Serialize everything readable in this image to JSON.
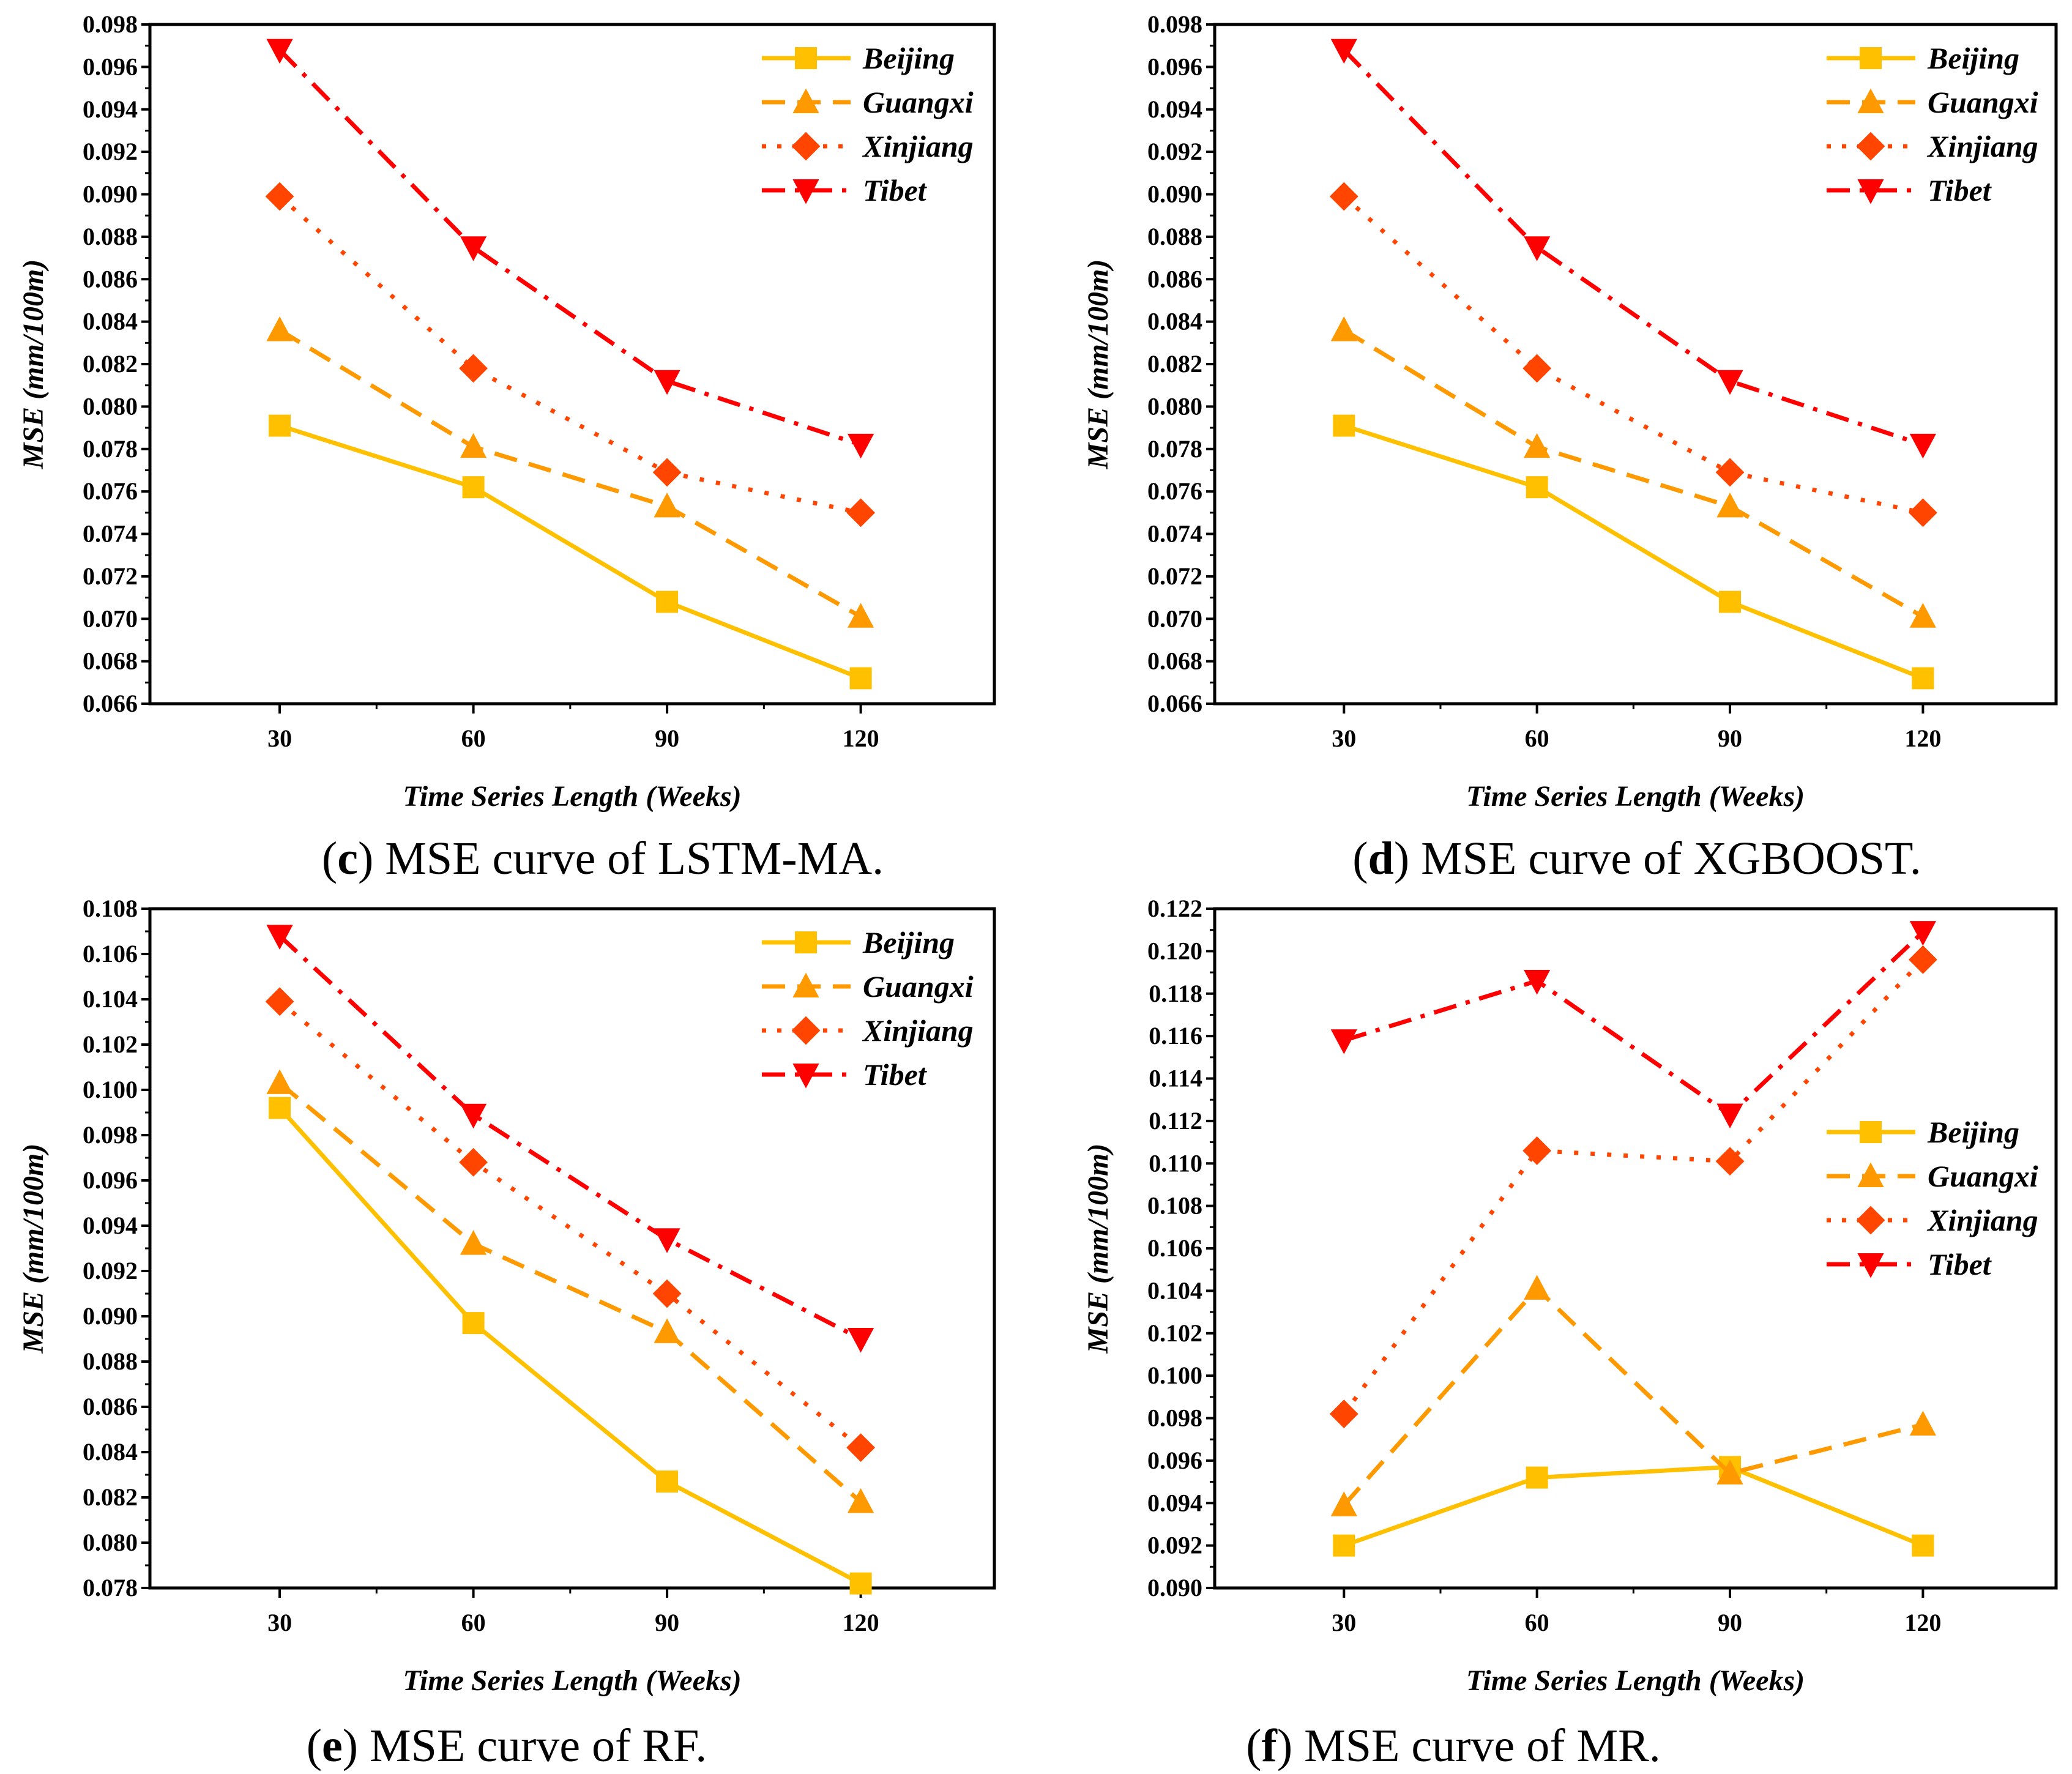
{
  "colors": {
    "Beijing": "#FFC000",
    "Guangxi": "#FF9900",
    "Xinjiang": "#FF4500",
    "Tibet": "#FF0000"
  },
  "chart_data": [
    {
      "type": "line",
      "panel": "c",
      "caption_prefix": "(",
      "caption_letter": "c",
      "caption_text": ") MSE curve of LSTM-MA.",
      "xlabel": "Time Series Length (Weeks)",
      "ylabel": "MSE (mm/100m)",
      "categories": [
        "30",
        "60",
        "90",
        "120"
      ],
      "yticks": [
        "0.066",
        "0.068",
        "0.070",
        "0.072",
        "0.074",
        "0.076",
        "0.078",
        "0.080",
        "0.082",
        "0.084",
        "0.086",
        "0.088",
        "0.090",
        "0.092",
        "0.094",
        "0.096",
        "0.098"
      ],
      "ylim": [
        0.066,
        0.098
      ],
      "legend_position": "top-right",
      "series": [
        {
          "name": "Beijing",
          "marker": "square",
          "dash": "solid",
          "values": [
            0.0791,
            0.0762,
            0.0708,
            0.0672
          ]
        },
        {
          "name": "Guangxi",
          "marker": "triangle-up",
          "dash": "dash",
          "values": [
            0.0836,
            0.0781,
            0.0753,
            0.0701
          ]
        },
        {
          "name": "Xinjiang",
          "marker": "diamond",
          "dash": "dot",
          "values": [
            0.0899,
            0.0818,
            0.0769,
            0.075
          ]
        },
        {
          "name": "Tibet",
          "marker": "triangle-down",
          "dash": "dashdot",
          "values": [
            0.0968,
            0.0875,
            0.0812,
            0.0782
          ]
        }
      ]
    },
    {
      "type": "line",
      "panel": "d",
      "caption_prefix": "(",
      "caption_letter": "d",
      "caption_text": ") MSE curve of XGBOOST.",
      "xlabel": "Time Series Length (Weeks)",
      "ylabel": "MSE (mm/100m)",
      "categories": [
        "30",
        "60",
        "90",
        "120"
      ],
      "yticks": [
        "0.066",
        "0.068",
        "0.070",
        "0.072",
        "0.074",
        "0.076",
        "0.078",
        "0.080",
        "0.082",
        "0.084",
        "0.086",
        "0.088",
        "0.090",
        "0.092",
        "0.094",
        "0.096",
        "0.098"
      ],
      "ylim": [
        0.066,
        0.098
      ],
      "legend_position": "top-right",
      "series": [
        {
          "name": "Beijing",
          "marker": "square",
          "dash": "solid",
          "values": [
            0.0791,
            0.0762,
            0.0708,
            0.0672
          ]
        },
        {
          "name": "Guangxi",
          "marker": "triangle-up",
          "dash": "dash",
          "values": [
            0.0836,
            0.0781,
            0.0753,
            0.0701
          ]
        },
        {
          "name": "Xinjiang",
          "marker": "diamond",
          "dash": "dot",
          "values": [
            0.0899,
            0.0818,
            0.0769,
            0.075
          ]
        },
        {
          "name": "Tibet",
          "marker": "triangle-down",
          "dash": "dashdot",
          "values": [
            0.0968,
            0.0875,
            0.0812,
            0.0782
          ]
        }
      ]
    },
    {
      "type": "line",
      "panel": "e",
      "caption_prefix": "(",
      "caption_letter": "e",
      "caption_text": ") MSE curve of RF.",
      "xlabel": "Time Series Length (Weeks)",
      "ylabel": "MSE (mm/100m)",
      "categories": [
        "30",
        "60",
        "90",
        "120"
      ],
      "yticks": [
        "0.078",
        "0.080",
        "0.082",
        "0.084",
        "0.086",
        "0.088",
        "0.090",
        "0.092",
        "0.094",
        "0.096",
        "0.098",
        "0.100",
        "0.102",
        "0.104",
        "0.106",
        "0.108"
      ],
      "ylim": [
        0.078,
        0.108
      ],
      "legend_position": "top-right",
      "series": [
        {
          "name": "Beijing",
          "marker": "square",
          "dash": "solid",
          "values": [
            0.0992,
            0.0897,
            0.0827,
            0.0782
          ]
        },
        {
          "name": "Guangxi",
          "marker": "triangle-up",
          "dash": "dash",
          "values": [
            0.1003,
            0.0932,
            0.0893,
            0.0818
          ]
        },
        {
          "name": "Xinjiang",
          "marker": "diamond",
          "dash": "dot",
          "values": [
            0.1039,
            0.0968,
            0.091,
            0.0842
          ]
        },
        {
          "name": "Tibet",
          "marker": "triangle-down",
          "dash": "dashdot",
          "values": [
            0.1068,
            0.0989,
            0.0934,
            0.089
          ]
        }
      ]
    },
    {
      "type": "line",
      "panel": "f",
      "caption_prefix": "(",
      "caption_letter": "f",
      "caption_text": ") MSE curve of MR.",
      "xlabel": "Time Series Length (Weeks)",
      "ylabel": "MSE (mm/100m)",
      "categories": [
        "30",
        "60",
        "90",
        "120"
      ],
      "yticks": [
        "0.090",
        "0.092",
        "0.094",
        "0.096",
        "0.098",
        "0.100",
        "0.102",
        "0.104",
        "0.106",
        "0.108",
        "0.110",
        "0.112",
        "0.114",
        "0.116",
        "0.118",
        "0.120",
        "0.122"
      ],
      "ylim": [
        0.09,
        0.122
      ],
      "legend_position": "center-right",
      "series": [
        {
          "name": "Beijing",
          "marker": "square",
          "dash": "solid",
          "values": [
            0.092,
            0.0952,
            0.0957,
            0.092
          ]
        },
        {
          "name": "Guangxi",
          "marker": "triangle-up",
          "dash": "dash",
          "values": [
            0.0939,
            0.1041,
            0.0954,
            0.0977
          ]
        },
        {
          "name": "Xinjiang",
          "marker": "diamond",
          "dash": "dot",
          "values": [
            0.0982,
            0.1106,
            0.1101,
            0.1196
          ]
        },
        {
          "name": "Tibet",
          "marker": "triangle-down",
          "dash": "dashdot",
          "values": [
            0.1158,
            0.1186,
            0.1123,
            0.1209
          ]
        }
      ]
    }
  ]
}
